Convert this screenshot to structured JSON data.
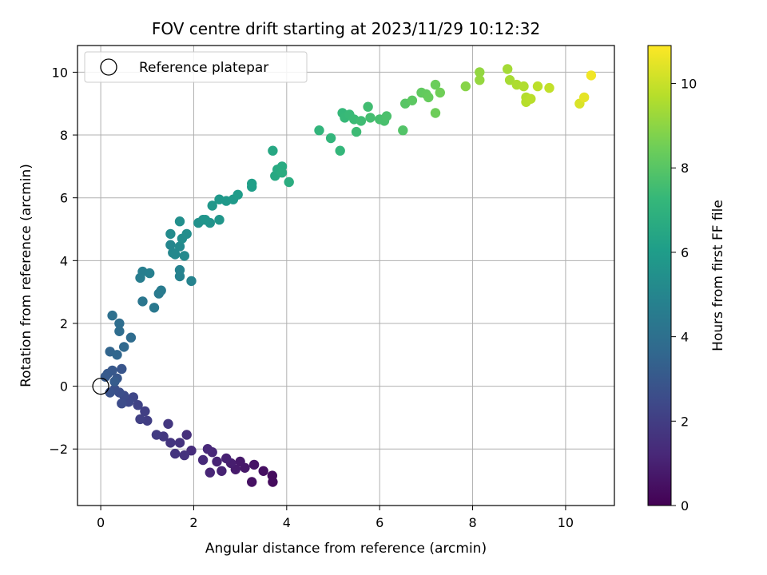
{
  "chart_data": {
    "type": "scatter",
    "title": "FOV centre drift starting at 2023/11/29 10:12:32",
    "xlabel": "Angular distance from reference (arcmin)",
    "ylabel": "Rotation from reference (arcmin)",
    "xlim": [
      -0.5,
      11.05
    ],
    "ylim": [
      -3.8,
      10.85
    ],
    "xticks": [
      0,
      2,
      4,
      6,
      8,
      10
    ],
    "yticks": [
      -2,
      0,
      2,
      4,
      6,
      8,
      10
    ],
    "grid": true,
    "legend": {
      "placement": "top-left",
      "entries": [
        "Reference platepar"
      ]
    },
    "reference_point": {
      "x": 0,
      "y": 0,
      "label": "Reference platepar"
    },
    "colorbar": {
      "label": "Hours from first FF file",
      "range": [
        0,
        10.9
      ],
      "ticks": [
        0,
        2,
        4,
        6,
        8,
        10
      ],
      "colormap": "viridis"
    },
    "colormap_stops": [
      "#440154",
      "#482878",
      "#3e4989",
      "#31688e",
      "#26828e",
      "#1f9e89",
      "#35b779",
      "#6ece58",
      "#b5de2b",
      "#fde725"
    ],
    "series": [
      {
        "points": [
          [
            3.7,
            -3.05
          ],
          [
            3.69,
            -2.85
          ],
          [
            3.5,
            -2.7
          ],
          [
            3.25,
            -3.05
          ],
          [
            3.3,
            -2.5
          ],
          [
            3.1,
            -2.6
          ],
          [
            3.0,
            -2.4
          ],
          [
            2.9,
            -2.65
          ],
          [
            2.8,
            -2.45
          ],
          [
            2.7,
            -2.3
          ],
          [
            2.6,
            -2.7
          ],
          [
            2.5,
            -2.4
          ],
          [
            2.35,
            -2.75
          ],
          [
            2.4,
            -2.1
          ],
          [
            2.3,
            -2.0
          ],
          [
            2.2,
            -2.35
          ],
          [
            1.95,
            -2.05
          ],
          [
            1.85,
            -1.55
          ],
          [
            1.8,
            -2.2
          ],
          [
            1.7,
            -1.8
          ],
          [
            1.6,
            -2.15
          ],
          [
            1.5,
            -1.8
          ],
          [
            1.45,
            -1.2
          ],
          [
            1.35,
            -1.6
          ],
          [
            1.2,
            -1.55
          ],
          [
            1.0,
            -1.1
          ],
          [
            0.95,
            -0.8
          ],
          [
            0.85,
            -1.05
          ],
          [
            0.8,
            -0.6
          ],
          [
            0.7,
            -0.35
          ],
          [
            0.6,
            -0.5
          ],
          [
            0.5,
            -0.3
          ],
          [
            0.45,
            -0.55
          ],
          [
            0.4,
            -0.2
          ],
          [
            0.3,
            -0.1
          ],
          [
            0.2,
            -0.2
          ],
          [
            0.45,
            0.55
          ],
          [
            0.35,
            0.25
          ],
          [
            0.25,
            0.5
          ],
          [
            0.15,
            0.4
          ],
          [
            0.1,
            0.3
          ],
          [
            0.3,
            0.15
          ],
          [
            0.2,
            1.1
          ],
          [
            0.35,
            1.0
          ],
          [
            0.5,
            1.25
          ],
          [
            0.65,
            1.55
          ],
          [
            0.4,
            1.75
          ],
          [
            0.4,
            2.0
          ],
          [
            0.25,
            2.25
          ],
          [
            0.9,
            2.7
          ],
          [
            1.15,
            2.5
          ],
          [
            1.25,
            2.95
          ],
          [
            1.3,
            3.05
          ],
          [
            0.85,
            3.45
          ],
          [
            0.9,
            3.65
          ],
          [
            1.05,
            3.6
          ],
          [
            1.7,
            3.5
          ],
          [
            1.7,
            3.7
          ],
          [
            1.95,
            3.35
          ],
          [
            1.5,
            4.5
          ],
          [
            1.55,
            4.25
          ],
          [
            1.6,
            4.2
          ],
          [
            1.7,
            4.45
          ],
          [
            1.8,
            4.15
          ],
          [
            1.5,
            4.85
          ],
          [
            1.75,
            4.7
          ],
          [
            1.85,
            4.85
          ],
          [
            1.7,
            5.25
          ],
          [
            2.1,
            5.2
          ],
          [
            2.2,
            5.3
          ],
          [
            2.35,
            5.2
          ],
          [
            2.25,
            5.3
          ],
          [
            2.55,
            5.3
          ],
          [
            2.4,
            5.75
          ],
          [
            2.55,
            5.95
          ],
          [
            2.7,
            5.9
          ],
          [
            2.85,
            5.95
          ],
          [
            2.95,
            6.1
          ],
          [
            3.25,
            6.35
          ],
          [
            3.25,
            6.45
          ],
          [
            3.7,
            7.5
          ],
          [
            3.75,
            6.7
          ],
          [
            3.8,
            6.9
          ],
          [
            3.9,
            7.0
          ],
          [
            3.9,
            6.8
          ],
          [
            4.05,
            6.5
          ],
          [
            4.7,
            8.15
          ],
          [
            4.95,
            7.9
          ],
          [
            5.15,
            7.5
          ],
          [
            5.2,
            8.7
          ],
          [
            5.25,
            8.55
          ],
          [
            5.35,
            8.65
          ],
          [
            5.45,
            8.5
          ],
          [
            5.5,
            8.1
          ],
          [
            5.6,
            8.45
          ],
          [
            5.75,
            8.9
          ],
          [
            5.8,
            8.55
          ],
          [
            6.0,
            8.5
          ],
          [
            6.1,
            8.45
          ],
          [
            6.15,
            8.6
          ],
          [
            6.5,
            8.15
          ],
          [
            6.55,
            9.0
          ],
          [
            6.7,
            9.1
          ],
          [
            6.9,
            9.35
          ],
          [
            7.0,
            9.3
          ],
          [
            7.05,
            9.2
          ],
          [
            7.2,
            9.6
          ],
          [
            7.2,
            8.7
          ],
          [
            7.3,
            9.35
          ],
          [
            7.85,
            9.55
          ],
          [
            8.15,
            10.0
          ],
          [
            8.15,
            9.75
          ],
          [
            8.75,
            10.1
          ],
          [
            8.8,
            9.75
          ],
          [
            8.95,
            9.6
          ],
          [
            9.1,
            9.55
          ],
          [
            9.15,
            9.2
          ],
          [
            9.15,
            9.05
          ],
          [
            9.25,
            9.15
          ],
          [
            9.4,
            9.55
          ],
          [
            9.65,
            9.5
          ],
          [
            10.3,
            9.0
          ],
          [
            10.4,
            9.2
          ],
          [
            10.55,
            9.9
          ]
        ],
        "hours": [
          0.3,
          0.35,
          0.45,
          0.5,
          0.6,
          0.7,
          0.75,
          0.8,
          0.9,
          1.0,
          1.05,
          1.1,
          1.15,
          1.2,
          1.25,
          1.3,
          1.4,
          1.5,
          1.55,
          1.6,
          1.65,
          1.7,
          1.75,
          1.8,
          1.9,
          2.0,
          2.05,
          2.1,
          2.2,
          2.3,
          2.4,
          2.5,
          2.55,
          2.6,
          2.7,
          2.8,
          2.9,
          2.95,
          3.0,
          3.05,
          3.1,
          3.15,
          3.5,
          3.6,
          3.7,
          3.8,
          3.85,
          3.9,
          4.0,
          4.3,
          4.4,
          4.45,
          4.5,
          4.6,
          4.65,
          4.7,
          4.8,
          4.85,
          4.9,
          5.0,
          5.05,
          5.1,
          5.15,
          5.2,
          5.25,
          5.3,
          5.35,
          5.4,
          5.5,
          5.55,
          5.6,
          5.65,
          5.7,
          5.75,
          5.8,
          5.85,
          5.9,
          5.95,
          6.05,
          6.1,
          6.5,
          6.55,
          6.6,
          6.65,
          6.7,
          6.75,
          7.1,
          7.15,
          7.2,
          7.25,
          7.3,
          7.35,
          7.4,
          7.45,
          7.5,
          7.55,
          7.6,
          7.65,
          7.7,
          7.75,
          7.9,
          8.0,
          8.1,
          8.2,
          8.25,
          8.3,
          8.4,
          8.45,
          8.5,
          8.9,
          9.1,
          9.15,
          9.4,
          9.45,
          9.55,
          9.6,
          9.65,
          9.7,
          9.75,
          9.8,
          9.9,
          10.3,
          10.5,
          10.7
        ]
      }
    ]
  }
}
